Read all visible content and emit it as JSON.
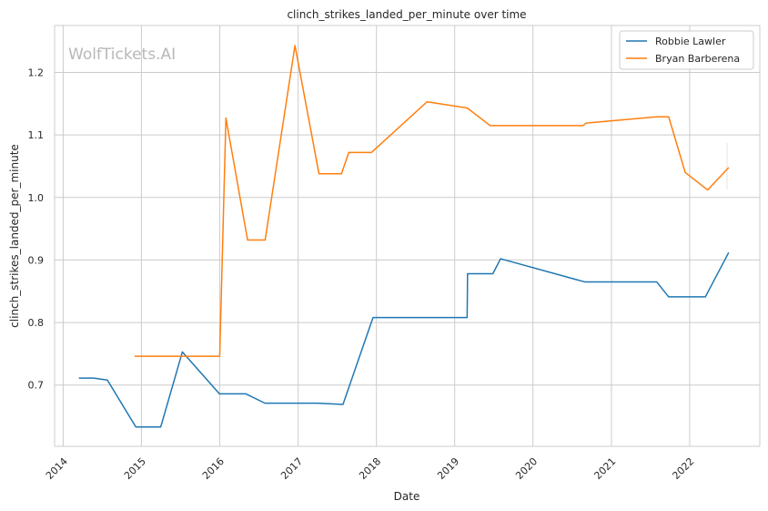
{
  "chart_data": {
    "type": "line",
    "title": "clinch_strikes_landed_per_minute over time",
    "xlabel": "Date",
    "ylabel": "clinch_strikes_landed_per_minute",
    "watermark": "WolfTickets.AI",
    "xlim": [
      "2013-11-22",
      "2022-11-24"
    ],
    "ylim": [
      0.602,
      1.275
    ],
    "x_ticks": [
      "2014",
      "2015",
      "2016",
      "2017",
      "2018",
      "2019",
      "2020",
      "2021",
      "2022"
    ],
    "y_ticks": [
      0.7,
      0.8,
      0.9,
      1.0,
      1.1,
      1.2
    ],
    "grid": true,
    "legend_position": "top-right",
    "colors": {
      "Robbie Lawler": "#1f77b4",
      "Bryan Barberena": "#ff7f0e"
    },
    "series": [
      {
        "name": "Robbie Lawler",
        "points": [
          [
            "2014-03-15",
            0.711
          ],
          [
            "2014-05-24",
            0.711
          ],
          [
            "2014-07-26",
            0.708
          ],
          [
            "2014-12-06",
            0.633
          ],
          [
            "2015-04-01",
            0.633
          ],
          [
            "2015-07-11",
            0.753
          ],
          [
            "2015-12-31",
            0.686
          ],
          [
            "2016-05-01",
            0.686
          ],
          [
            "2016-07-30",
            0.671
          ],
          [
            "2017-04-01",
            0.671
          ],
          [
            "2017-07-29",
            0.669
          ],
          [
            "2017-12-16",
            0.808
          ],
          [
            "2019-02-28",
            0.808
          ],
          [
            "2019-03-02",
            0.878
          ],
          [
            "2019-06-28",
            0.878
          ],
          [
            "2019-08-03",
            0.902
          ],
          [
            "2020-08-29",
            0.865
          ],
          [
            "2021-07-31",
            0.865
          ],
          [
            "2021-09-25",
            0.841
          ],
          [
            "2022-03-15",
            0.841
          ],
          [
            "2022-07-02",
            0.912
          ]
        ]
      },
      {
        "name": "Bryan Barberena",
        "points": [
          [
            "2014-11-30",
            0.746
          ],
          [
            "2016-01-01",
            0.746
          ],
          [
            "2016-01-30",
            1.127
          ],
          [
            "2016-05-10",
            0.932
          ],
          [
            "2016-07-31",
            0.932
          ],
          [
            "2016-12-17",
            1.243
          ],
          [
            "2017-04-08",
            1.038
          ],
          [
            "2017-07-22",
            1.038
          ],
          [
            "2017-08-25",
            1.072
          ],
          [
            "2017-12-09",
            1.072
          ],
          [
            "2018-08-25",
            1.153
          ],
          [
            "2019-03-01",
            1.143
          ],
          [
            "2019-06-15",
            1.115
          ],
          [
            "2020-08-22",
            1.115
          ],
          [
            "2020-09-05",
            1.119
          ],
          [
            "2021-07-31",
            1.129
          ],
          [
            "2021-09-25",
            1.129
          ],
          [
            "2021-12-11",
            1.04
          ],
          [
            "2022-03-26",
            1.012
          ],
          [
            "2022-07-02",
            1.048
          ]
        ]
      }
    ]
  }
}
